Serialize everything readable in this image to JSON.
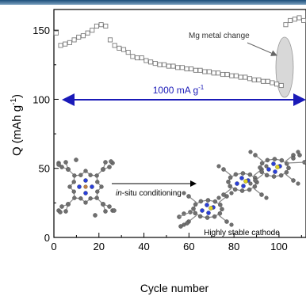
{
  "chart_data": {
    "type": "scatter",
    "xlabel": "Cycle number",
    "ylabel_main": "Q (mAh g",
    "ylabel_sup": "-1",
    "ylabel_close": ")",
    "xlim": [
      0,
      112
    ],
    "ylim": [
      0,
      165
    ],
    "xticks": [
      0,
      20,
      40,
      60,
      80,
      100
    ],
    "yticks": [
      0,
      50,
      100,
      150
    ],
    "marker": "open-square",
    "marker_color": "#7a7a7a",
    "series": [
      {
        "values": [
          [
            1,
            148
          ],
          [
            3,
            139
          ],
          [
            5,
            140
          ],
          [
            7,
            141
          ],
          [
            9,
            143
          ],
          [
            11,
            145
          ],
          [
            13,
            146
          ],
          [
            15,
            148
          ],
          [
            17,
            150
          ],
          [
            19,
            153
          ],
          [
            21,
            154
          ],
          [
            23,
            153
          ],
          [
            25,
            143
          ],
          [
            27,
            139
          ],
          [
            29,
            137
          ],
          [
            31,
            136
          ],
          [
            33,
            134
          ],
          [
            35,
            131
          ],
          [
            37,
            130
          ],
          [
            39,
            130
          ],
          [
            41,
            128
          ],
          [
            43,
            127
          ],
          [
            45,
            126
          ],
          [
            47,
            125
          ],
          [
            49,
            125
          ],
          [
            51,
            124
          ],
          [
            53,
            124
          ],
          [
            55,
            123
          ],
          [
            57,
            123
          ],
          [
            59,
            122
          ],
          [
            61,
            122
          ],
          [
            63,
            121
          ],
          [
            65,
            121
          ],
          [
            67,
            120
          ],
          [
            69,
            120
          ],
          [
            71,
            119
          ],
          [
            73,
            119
          ],
          [
            75,
            118
          ],
          [
            77,
            118
          ],
          [
            79,
            117
          ],
          [
            81,
            117
          ],
          [
            83,
            116
          ],
          [
            85,
            116
          ],
          [
            87,
            115
          ],
          [
            89,
            114
          ],
          [
            91,
            114
          ],
          [
            93,
            113
          ],
          [
            95,
            113
          ],
          [
            97,
            112
          ],
          [
            99,
            111
          ],
          [
            101,
            110
          ],
          [
            103,
            154
          ],
          [
            105,
            157
          ],
          [
            107,
            158
          ],
          [
            109,
            159
          ],
          [
            111,
            157
          ]
        ]
      }
    ],
    "annotations": {
      "current_label": "1000 mA g",
      "current_sup": "-1",
      "current_color": "#1a1ab8",
      "mg_change": "Mg metal change",
      "conditioning_prefix": "in",
      "conditioning_suffix": "-situ conditioning",
      "cathode_label": "Highly stable cathode"
    },
    "grid": false
  },
  "colors": {
    "arrow_blue": "#1a1ab8",
    "ellipse_fill": "#d8d8d8",
    "atom_carbon": "#6f6f6f",
    "atom_nitrogen": "#2a3fd8",
    "atom_metal": "#e0d020"
  }
}
